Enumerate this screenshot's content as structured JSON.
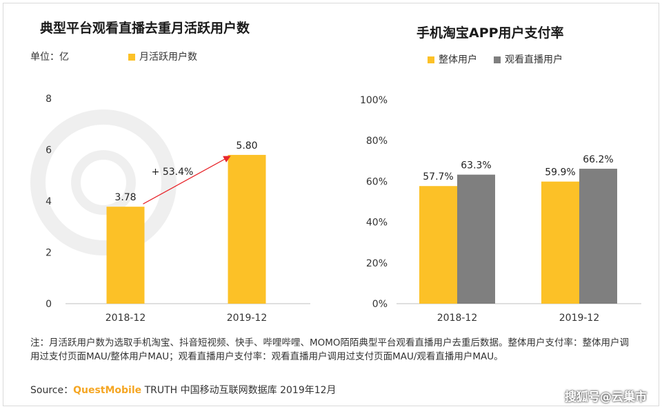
{
  "chart_data": [
    {
      "type": "bar",
      "title": "典型平台观看直播去重月活跃用户数",
      "unit_label": "单位：亿",
      "categories": [
        "2018-12",
        "2019-12"
      ],
      "series": [
        {
          "name": "月活跃用户数",
          "values": [
            3.78,
            5.8
          ],
          "color": "#FCC127"
        }
      ],
      "data_labels": [
        "3.78",
        "5.80"
      ],
      "ylim": [
        0,
        8
      ],
      "yticks": [
        "0",
        "2",
        "4",
        "6",
        "8"
      ],
      "growth_annotation": "+ 53.4%",
      "arrow_color": "#E8262C",
      "grid": false,
      "legend_position": "top-left"
    },
    {
      "type": "bar",
      "title": "手机淘宝APP用户支付率",
      "categories": [
        "2018-12",
        "2019-12"
      ],
      "series": [
        {
          "name": "整体用户",
          "values": [
            57.7,
            59.9
          ],
          "color": "#FCC127"
        },
        {
          "name": "观看直播用户",
          "values": [
            63.3,
            66.2
          ],
          "color": "#7F7F7F"
        }
      ],
      "data_labels": [
        [
          "57.7%",
          "59.9%"
        ],
        [
          "63.3%",
          "66.2%"
        ]
      ],
      "ylim": [
        0,
        100
      ],
      "yticks": [
        "0%",
        "20%",
        "40%",
        "60%",
        "80%",
        "100%"
      ],
      "grid": false,
      "legend_position": "top-center"
    }
  ],
  "footer": {
    "note": "注：月活跃用户数为选取手机淘宝、抖音短视频、快手、哔哩哔哩、MOMO陌陌典型平台观看直播用户去重后数据。整体用户支付率：整体用户调用过支付页面MAU/整体用户MAU；观看直播用户支付率：观看直播用户调用过支付页面MAU/观看直播用户MAU。",
    "source_prefix": "Source：",
    "source_brand": "QuestMobile",
    "source_rest": " TRUTH 中国移动互联网数据库 2019年12月",
    "watermark": "搜狐号@云巢市"
  }
}
